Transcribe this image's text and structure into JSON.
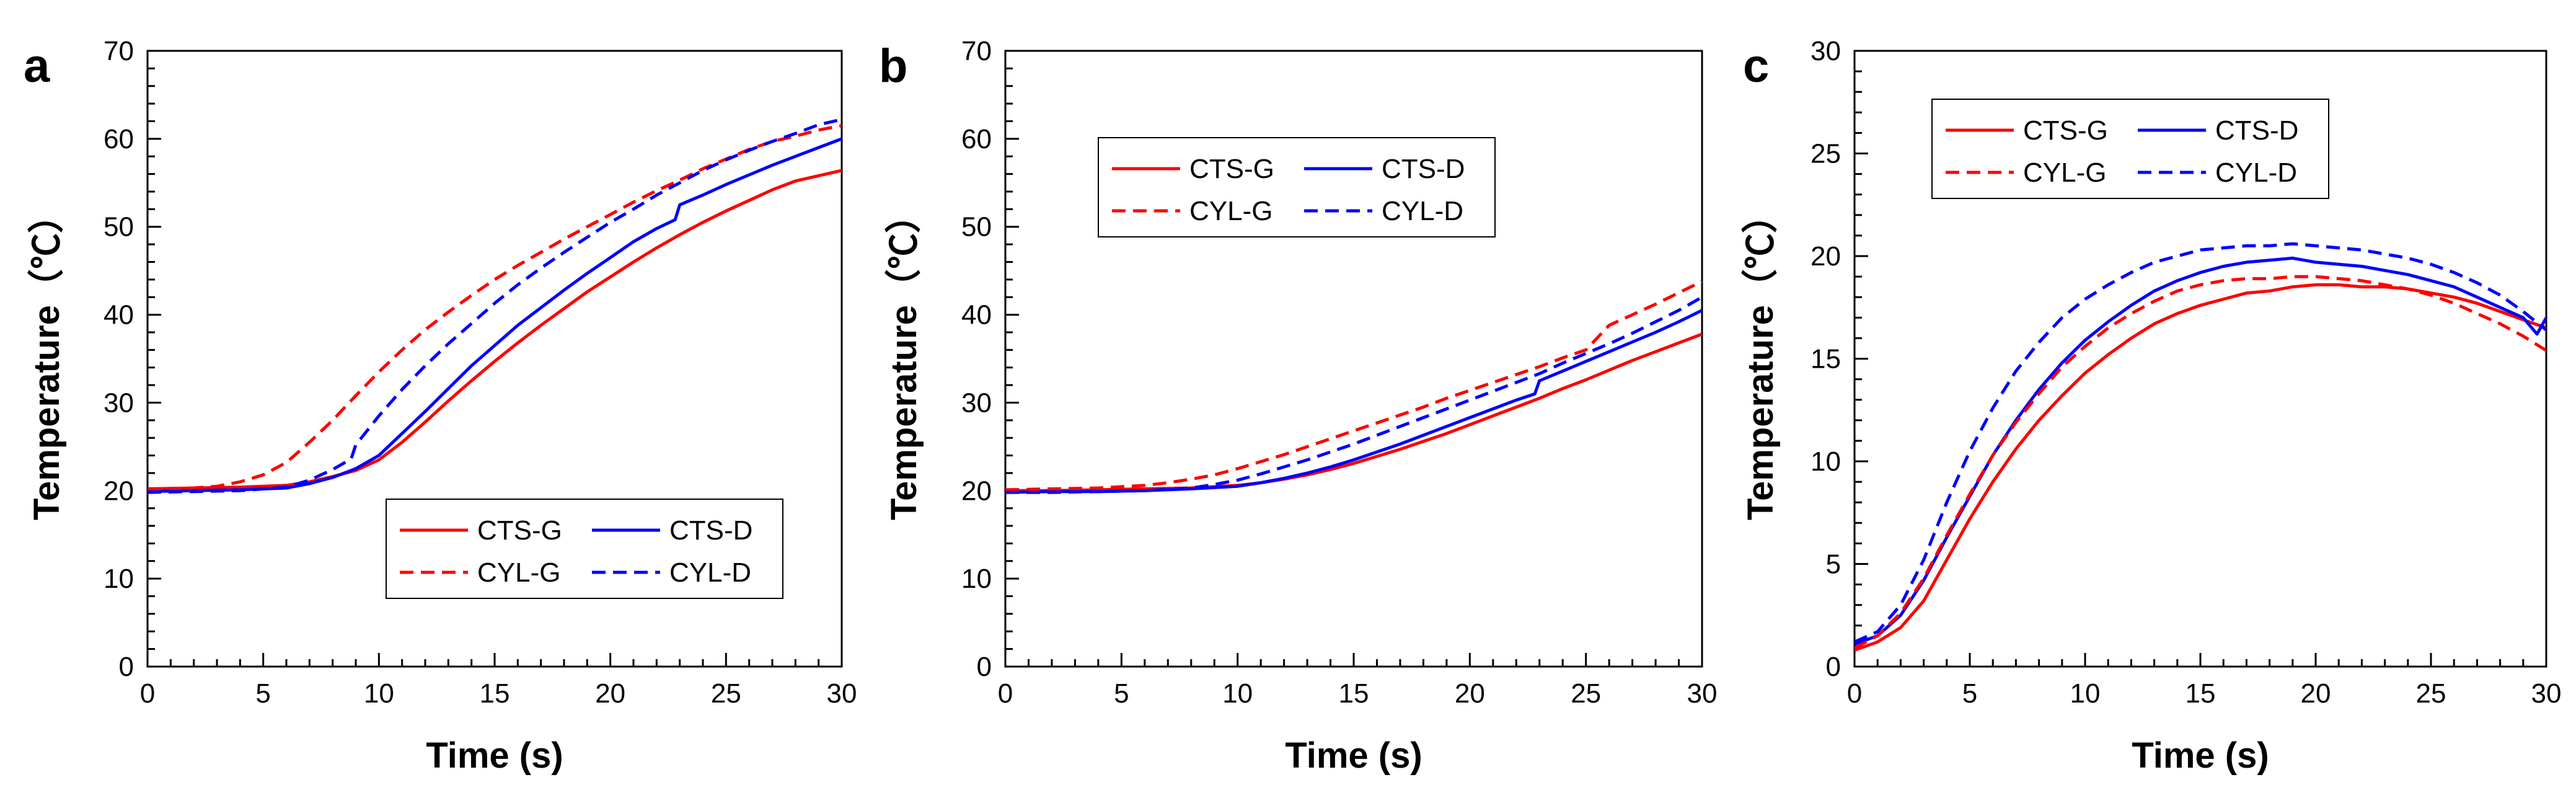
{
  "chart_data": [
    {
      "type": "line",
      "panel_label": "a",
      "xlabel": "Time (s)",
      "ylabel": "Temperature（℃）",
      "xlim": [
        0,
        30
      ],
      "ylim": [
        0,
        70
      ],
      "xticks": [
        0,
        5,
        10,
        15,
        20,
        25,
        30
      ],
      "yticks": [
        0,
        10,
        20,
        30,
        40,
        50,
        60,
        70
      ],
      "legend_position": "bottom-right",
      "series": [
        {
          "name": "CTS-G",
          "color": "#ff0000",
          "style": "solid",
          "x": [
            0,
            2,
            4,
            6,
            7,
            8,
            9,
            10,
            11,
            12,
            13,
            14,
            15,
            16,
            17,
            18,
            19,
            20,
            21,
            22,
            23,
            24,
            25,
            26,
            27,
            28,
            29,
            30
          ],
          "y": [
            20.2,
            20.3,
            20.4,
            20.6,
            21.0,
            21.6,
            22.3,
            23.5,
            25.5,
            27.8,
            30.2,
            32.5,
            34.7,
            36.8,
            38.8,
            40.7,
            42.6,
            44.3,
            46.0,
            47.6,
            49.1,
            50.5,
            51.8,
            53.0,
            54.2,
            55.2,
            55.8,
            56.4
          ]
        },
        {
          "name": "CTS-D",
          "color": "#0000ff",
          "style": "solid",
          "x": [
            0,
            2,
            4,
            6,
            7,
            8,
            9,
            10,
            11,
            12,
            13,
            14,
            15,
            16,
            17,
            18,
            19,
            20,
            21,
            22,
            22.8,
            23,
            24,
            25,
            26,
            27,
            28,
            29,
            30
          ],
          "y": [
            19.9,
            20.0,
            20.1,
            20.3,
            20.8,
            21.5,
            22.5,
            24.0,
            26.5,
            29.0,
            31.6,
            34.2,
            36.5,
            38.8,
            40.8,
            42.8,
            44.7,
            46.5,
            48.3,
            49.8,
            50.8,
            52.5,
            53.6,
            54.8,
            55.9,
            57.0,
            58.0,
            59.0,
            60.0
          ]
        },
        {
          "name": "CYL-G",
          "color": "#ff0000",
          "style": "dashed",
          "x": [
            0,
            2,
            3,
            4,
            5,
            6,
            7,
            8,
            9,
            10,
            11,
            12,
            13,
            14,
            15,
            16,
            17,
            18,
            19,
            20,
            21,
            22,
            23,
            24,
            25,
            26,
            27,
            28,
            29,
            30
          ],
          "y": [
            20.2,
            20.3,
            20.5,
            21.0,
            21.8,
            23.2,
            25.5,
            28.0,
            30.8,
            33.5,
            36.0,
            38.3,
            40.3,
            42.2,
            44.0,
            45.6,
            47.1,
            48.6,
            50.0,
            51.4,
            52.8,
            54.1,
            55.3,
            56.6,
            57.7,
            58.8,
            59.7,
            60.3,
            61.0,
            61.5
          ]
        },
        {
          "name": "CYL-D",
          "color": "#0000ff",
          "style": "dashed",
          "x": [
            0,
            2,
            4,
            6,
            7,
            8,
            8.8,
            9,
            10,
            11,
            12,
            13,
            14,
            15,
            16,
            17,
            18,
            19,
            20,
            21,
            22,
            23,
            24,
            25,
            26,
            27,
            28,
            29,
            30
          ],
          "y": [
            19.8,
            19.9,
            20.0,
            20.4,
            21.2,
            22.4,
            23.6,
            25.2,
            28.5,
            31.5,
            34.2,
            36.7,
            39.0,
            41.3,
            43.4,
            45.3,
            47.1,
            48.8,
            50.5,
            52.0,
            53.6,
            55.0,
            56.4,
            57.6,
            58.7,
            59.7,
            60.6,
            61.6,
            62.2
          ]
        }
      ]
    },
    {
      "type": "line",
      "panel_label": "b",
      "xlabel": "Time (s)",
      "ylabel": "Temperature（℃）",
      "xlim": [
        0,
        30
      ],
      "ylim": [
        0,
        70
      ],
      "xticks": [
        0,
        5,
        10,
        15,
        20,
        25,
        30
      ],
      "yticks": [
        0,
        10,
        20,
        30,
        40,
        50,
        60,
        70
      ],
      "legend_position": "top-left",
      "series": [
        {
          "name": "CTS-G",
          "color": "#ff0000",
          "style": "solid",
          "x": [
            0,
            2,
            4,
            6,
            8,
            10,
            11,
            12,
            13,
            14,
            15,
            16,
            17,
            18,
            19,
            20,
            21,
            22,
            23,
            24,
            25,
            26,
            27,
            28,
            29,
            30
          ],
          "y": [
            20.0,
            20.0,
            20.1,
            20.2,
            20.3,
            20.6,
            20.9,
            21.3,
            21.8,
            22.4,
            23.1,
            23.9,
            24.7,
            25.6,
            26.5,
            27.5,
            28.5,
            29.5,
            30.5,
            31.6,
            32.6,
            33.7,
            34.8,
            35.8,
            36.8,
            37.8
          ]
        },
        {
          "name": "CTS-D",
          "color": "#0000ff",
          "style": "solid",
          "x": [
            0,
            2,
            4,
            6,
            8,
            10,
            11,
            12,
            13,
            14,
            15,
            16,
            17,
            18,
            19,
            20,
            21,
            22,
            22.8,
            23,
            24,
            25,
            26,
            27,
            28,
            29,
            30
          ],
          "y": [
            19.8,
            19.9,
            19.9,
            20.0,
            20.2,
            20.5,
            20.9,
            21.4,
            22.0,
            22.7,
            23.5,
            24.4,
            25.3,
            26.3,
            27.3,
            28.3,
            29.3,
            30.3,
            31.0,
            32.5,
            33.6,
            34.7,
            35.8,
            36.9,
            38.0,
            39.2,
            40.5
          ]
        },
        {
          "name": "CYL-G",
          "color": "#ff0000",
          "style": "dashed",
          "x": [
            0,
            2,
            4,
            6,
            7,
            8,
            9,
            10,
            11,
            12,
            13,
            14,
            15,
            16,
            17,
            18,
            19,
            20,
            21,
            22,
            23,
            24,
            25,
            26,
            27,
            28,
            29,
            30
          ],
          "y": [
            20.1,
            20.2,
            20.3,
            20.6,
            20.9,
            21.3,
            21.8,
            22.5,
            23.3,
            24.1,
            25.0,
            25.9,
            26.8,
            27.7,
            28.6,
            29.5,
            30.5,
            31.4,
            32.3,
            33.2,
            34.1,
            35.1,
            36.0,
            38.8,
            40.0,
            41.2,
            42.5,
            43.8
          ]
        },
        {
          "name": "CYL-D",
          "color": "#0000ff",
          "style": "dashed",
          "x": [
            0,
            2,
            4,
            6,
            8,
            9,
            10,
            11,
            12,
            13,
            14,
            15,
            16,
            17,
            18,
            19,
            20,
            21,
            22,
            23,
            24,
            25,
            26,
            27,
            28,
            29,
            30
          ],
          "y": [
            19.8,
            19.8,
            19.9,
            20.0,
            20.3,
            20.7,
            21.2,
            21.9,
            22.7,
            23.5,
            24.4,
            25.3,
            26.3,
            27.3,
            28.3,
            29.3,
            30.3,
            31.3,
            32.3,
            33.3,
            34.5,
            35.6,
            36.7,
            37.9,
            39.2,
            40.5,
            42.0
          ]
        }
      ]
    },
    {
      "type": "line",
      "panel_label": "c",
      "xlabel": "Time (s)",
      "ylabel": "Temperature（℃）",
      "xlim": [
        0,
        30
      ],
      "ylim": [
        0,
        30
      ],
      "xticks": [
        0,
        5,
        10,
        15,
        20,
        25,
        30
      ],
      "yticks": [
        0,
        5,
        10,
        15,
        20,
        25,
        30
      ],
      "legend_position": "top-left",
      "series": [
        {
          "name": "CTS-G",
          "color": "#ff0000",
          "style": "solid",
          "x": [
            0,
            1,
            2,
            3,
            4,
            5,
            6,
            7,
            8,
            9,
            10,
            11,
            12,
            13,
            14,
            15,
            16,
            17,
            18,
            19,
            20,
            21,
            22,
            23,
            24,
            25,
            26,
            27,
            28,
            29,
            30
          ],
          "y": [
            0.8,
            1.2,
            1.9,
            3.2,
            5.2,
            7.2,
            9.0,
            10.6,
            12.0,
            13.2,
            14.3,
            15.2,
            16.0,
            16.7,
            17.2,
            17.6,
            17.9,
            18.2,
            18.3,
            18.5,
            18.6,
            18.6,
            18.5,
            18.5,
            18.4,
            18.2,
            18.0,
            17.7,
            17.3,
            16.9,
            16.5
          ]
        },
        {
          "name": "CTS-D",
          "color": "#0000ff",
          "style": "solid",
          "x": [
            0,
            1,
            2,
            3,
            4,
            5,
            6,
            7,
            8,
            9,
            10,
            11,
            12,
            13,
            14,
            15,
            16,
            17,
            18,
            19,
            20,
            21,
            22,
            23,
            24,
            25,
            26,
            27,
            28,
            29,
            29.6,
            30
          ],
          "y": [
            1.1,
            1.5,
            2.5,
            4.2,
            6.3,
            8.3,
            10.3,
            12.0,
            13.5,
            14.8,
            15.9,
            16.8,
            17.6,
            18.3,
            18.8,
            19.2,
            19.5,
            19.7,
            19.8,
            19.9,
            19.7,
            19.6,
            19.5,
            19.3,
            19.1,
            18.8,
            18.5,
            18.0,
            17.5,
            17.0,
            16.2,
            17.0
          ]
        },
        {
          "name": "CYL-G",
          "color": "#ff0000",
          "style": "dashed",
          "x": [
            0,
            1,
            2,
            3,
            4,
            5,
            6,
            7,
            8,
            9,
            10,
            11,
            12,
            13,
            14,
            15,
            16,
            17,
            18,
            19,
            20,
            21,
            22,
            23,
            24,
            25,
            26,
            27,
            28,
            29,
            30
          ],
          "y": [
            0.9,
            1.5,
            2.6,
            4.3,
            6.4,
            8.4,
            10.3,
            11.9,
            13.3,
            14.6,
            15.6,
            16.5,
            17.2,
            17.8,
            18.3,
            18.6,
            18.8,
            18.9,
            18.9,
            19.0,
            19.0,
            18.9,
            18.8,
            18.6,
            18.4,
            18.1,
            17.7,
            17.2,
            16.7,
            16.1,
            15.4
          ]
        },
        {
          "name": "CYL-D",
          "color": "#0000ff",
          "style": "dashed",
          "x": [
            0,
            1,
            2,
            3,
            4,
            5,
            6,
            7,
            8,
            9,
            10,
            11,
            12,
            13,
            14,
            15,
            16,
            17,
            18,
            19,
            20,
            21,
            22,
            23,
            24,
            25,
            26,
            27,
            28,
            29,
            30
          ],
          "y": [
            1.2,
            1.7,
            3.0,
            5.2,
            8.0,
            10.5,
            12.6,
            14.4,
            15.8,
            17.0,
            17.9,
            18.6,
            19.2,
            19.7,
            20.0,
            20.3,
            20.4,
            20.5,
            20.5,
            20.6,
            20.5,
            20.4,
            20.3,
            20.1,
            19.9,
            19.6,
            19.2,
            18.7,
            18.1,
            17.3,
            16.4
          ]
        }
      ]
    }
  ]
}
